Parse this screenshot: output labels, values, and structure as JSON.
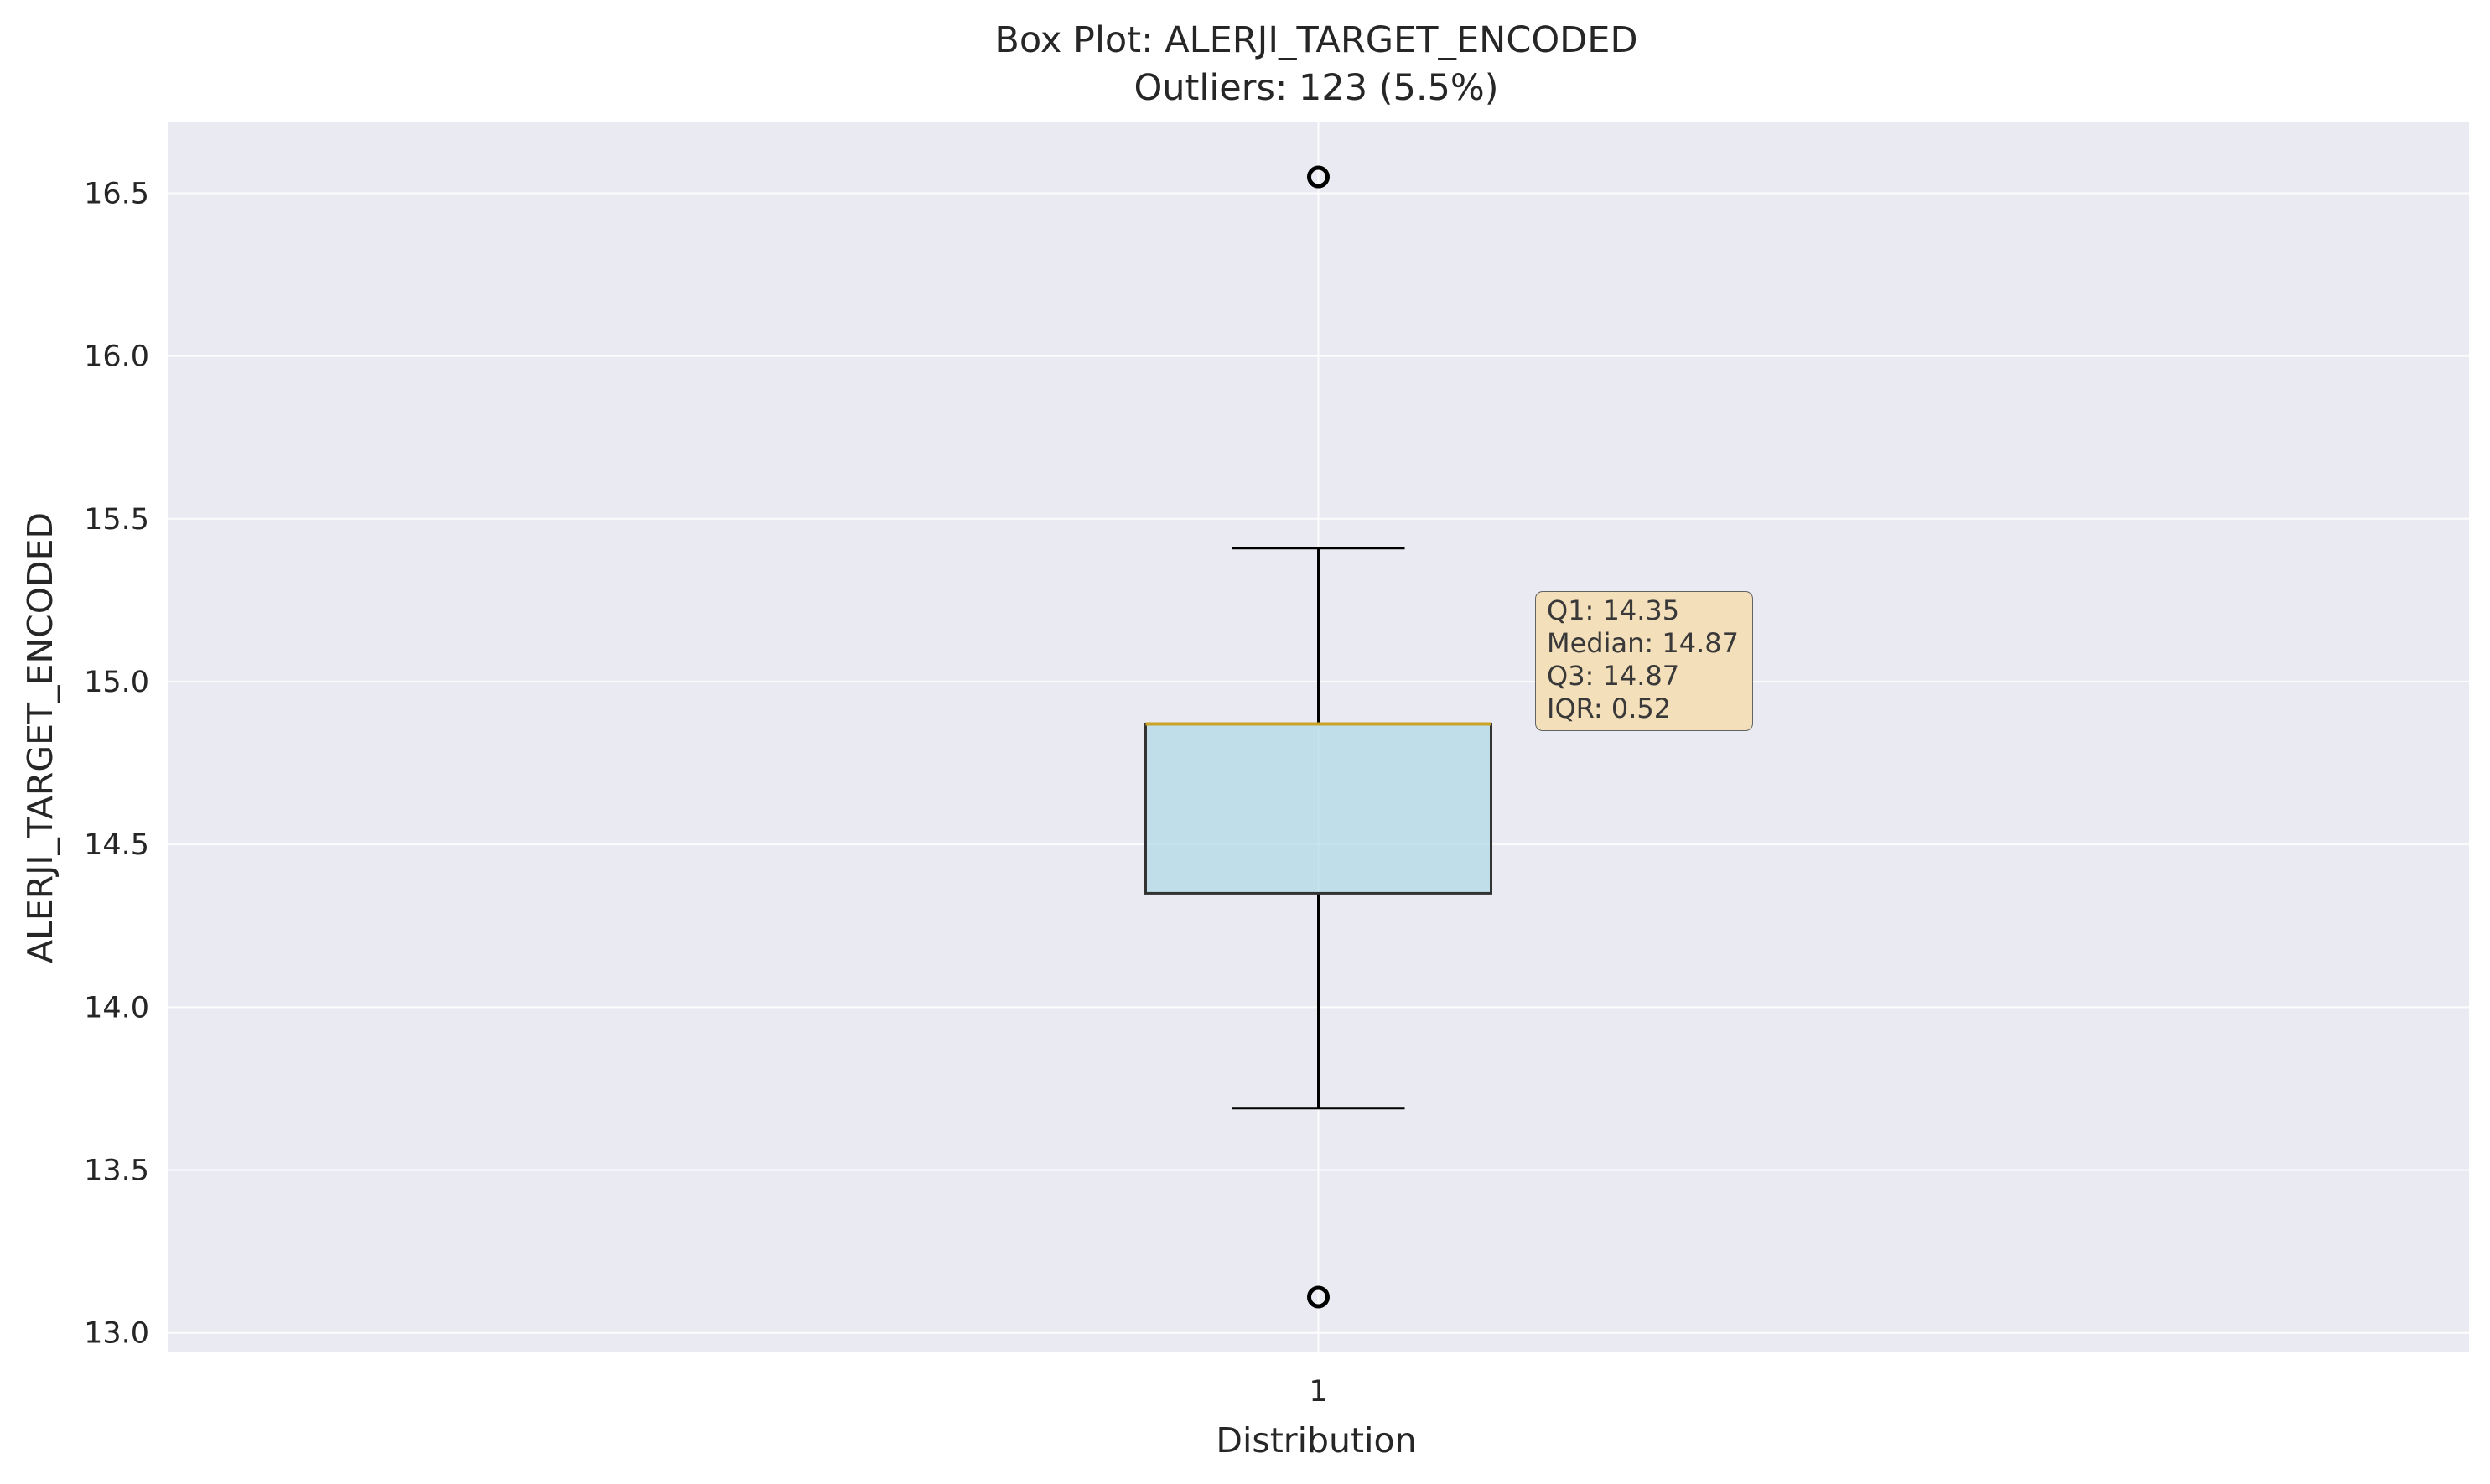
{
  "chart_data": {
    "type": "box",
    "title": "Box Plot: ALERJI_TARGET_ENCODED",
    "subtitle": "Outliers: 123 (5.5%)",
    "xlabel": "Distribution",
    "ylabel": "ALERJI_TARGET_ENCODED",
    "categories": [
      "1"
    ],
    "ylim": [
      12.94,
      16.72
    ],
    "yticks": [
      13.0,
      13.5,
      14.0,
      14.5,
      15.0,
      15.5,
      16.0,
      16.5
    ],
    "ytick_labels": [
      "13.0",
      "13.5",
      "14.0",
      "14.5",
      "15.0",
      "15.5",
      "16.0",
      "16.5"
    ],
    "grid": true,
    "box": {
      "q1": 14.35,
      "median": 14.87,
      "q3": 14.87,
      "whisker_low": 13.69,
      "whisker_high": 15.41,
      "outliers": [
        16.55,
        13.11
      ]
    },
    "stats_labels": [
      "Q1: 14.35",
      "Median: 14.87",
      "Q3: 14.87",
      "IQR: 0.52"
    ],
    "colors": {
      "plot_bg": "#eaeaf2",
      "grid": "#ffffff",
      "box_fill": "#add8e6",
      "box_edge": "#333333",
      "median": "#c9a227",
      "whisker": "#000000",
      "outlier_edge": "#000000",
      "stats_bg": "#f5deb3"
    }
  }
}
